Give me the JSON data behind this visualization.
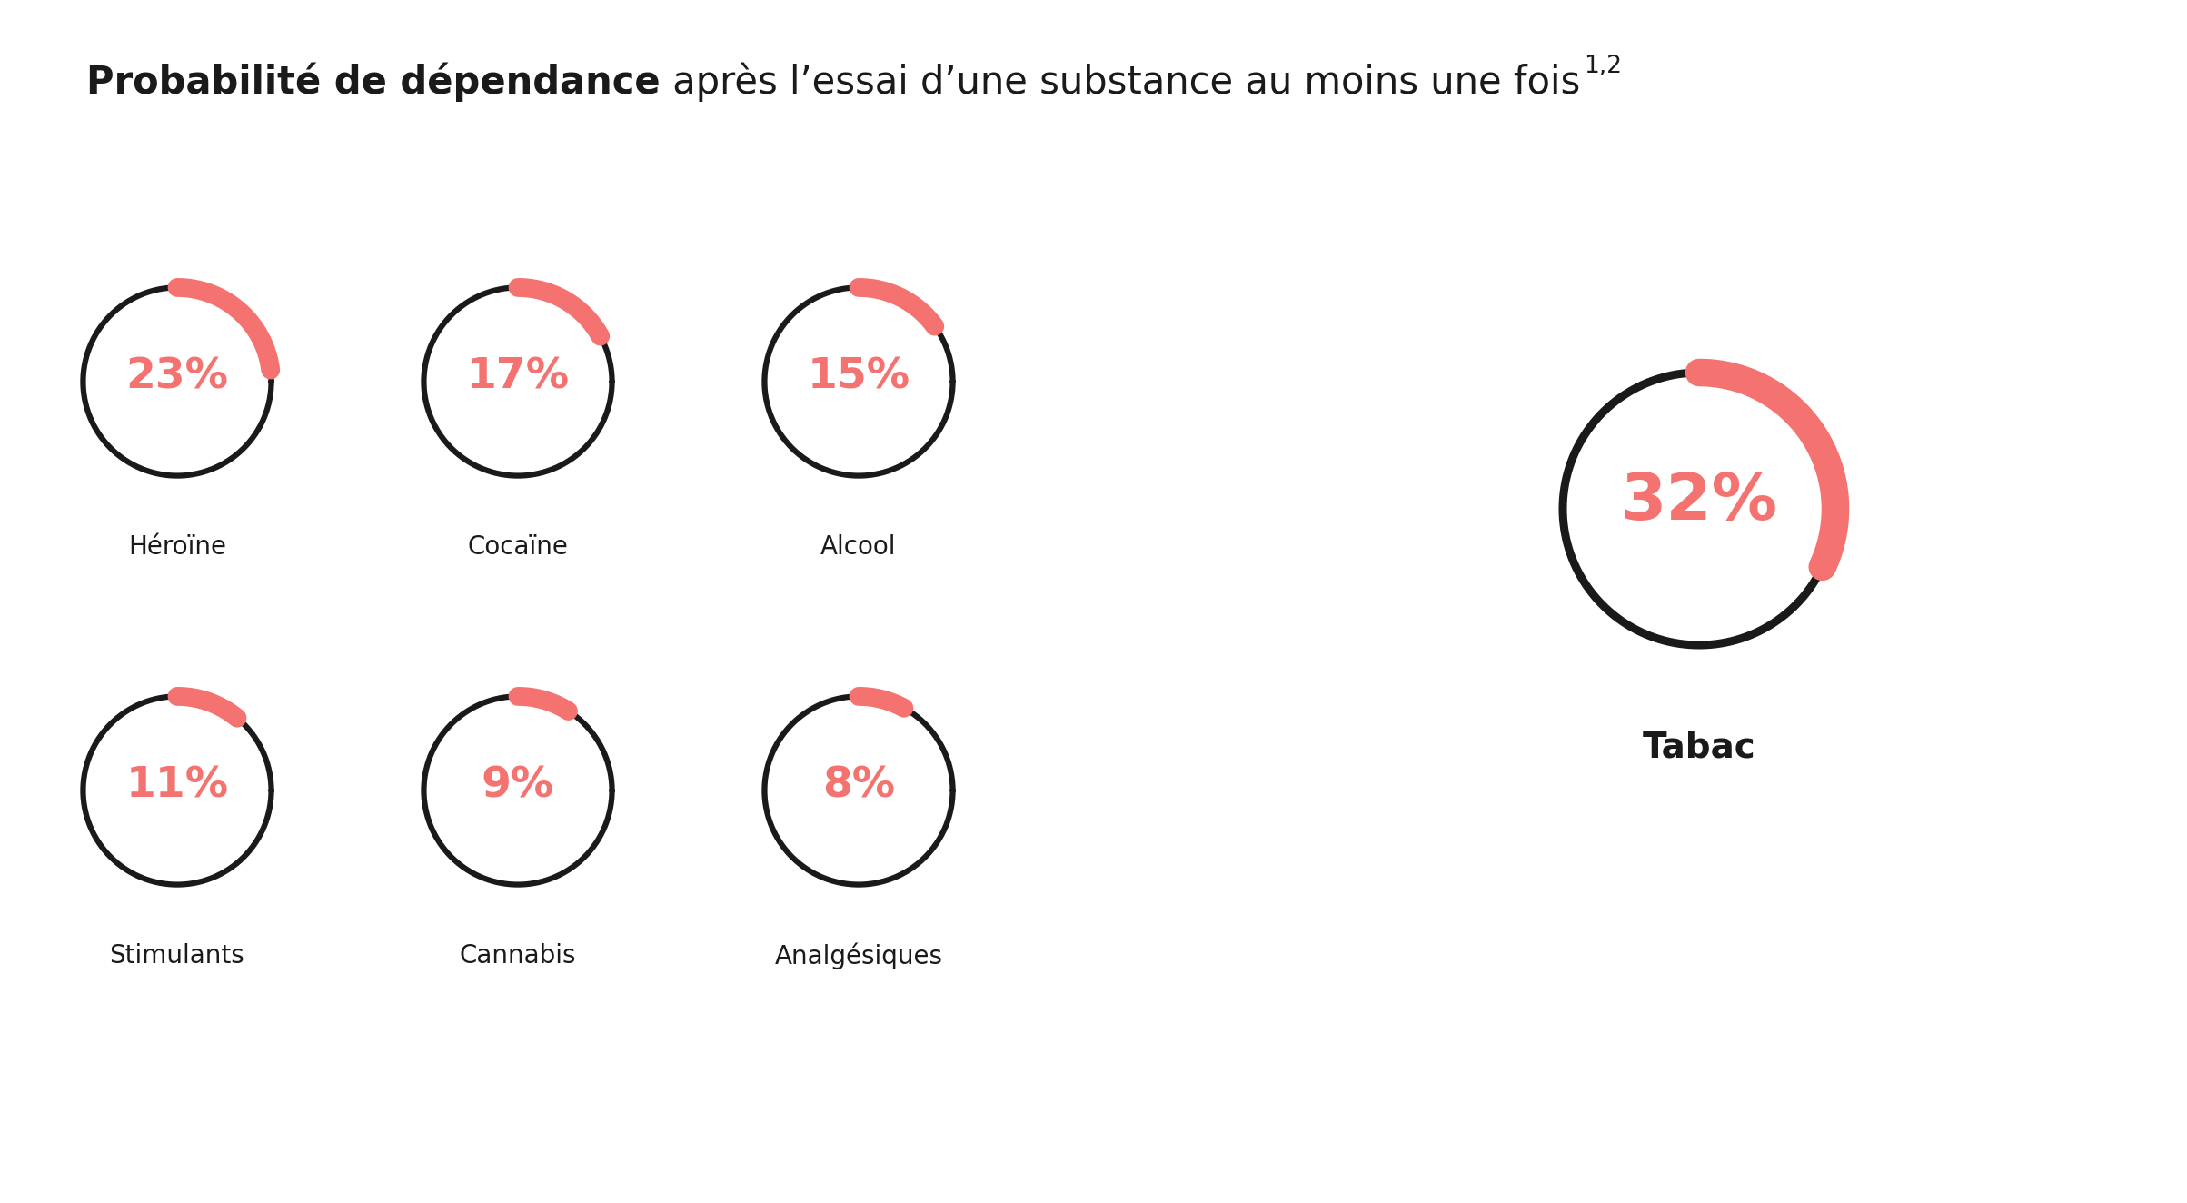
{
  "title_bold": "Probabilité de dépendance",
  "title_normal": " après l’essai d’une substance au moins une fois",
  "title_superscript": "1,2",
  "items": [
    {
      "label": "Héroïne",
      "value": 23,
      "row": 0,
      "col": 0,
      "large": false
    },
    {
      "label": "Cocaïne",
      "value": 17,
      "row": 0,
      "col": 1,
      "large": false
    },
    {
      "label": "Alcool",
      "value": 15,
      "row": 0,
      "col": 2,
      "large": false
    },
    {
      "label": "Stimulants",
      "value": 11,
      "row": 1,
      "col": 0,
      "large": false
    },
    {
      "label": "Cannabis",
      "value": 9,
      "row": 1,
      "col": 1,
      "large": false
    },
    {
      "label": "Analgésiques",
      "value": 8,
      "row": 1,
      "col": 2,
      "large": false
    },
    {
      "label": "Tabac",
      "value": 32,
      "row": 0,
      "col": 3,
      "large": true
    }
  ],
  "arc_color": "#F47370",
  "ring_color": "#1a1a1a",
  "text_color": "#F47370",
  "label_color": "#1a1a1a",
  "bg_color": "#ffffff",
  "ring_lw_small": 4.5,
  "arc_lw_small": 15,
  "ring_lw_large": 6.5,
  "arc_lw_large": 22
}
